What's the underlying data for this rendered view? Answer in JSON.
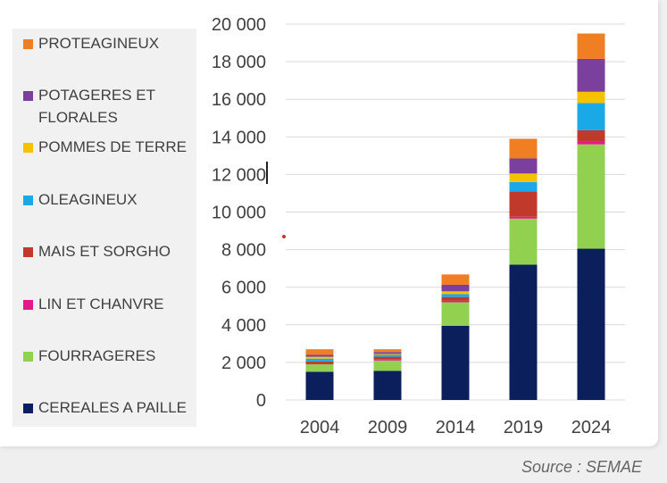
{
  "chart_data": {
    "type": "bar",
    "stacked": true,
    "categories": [
      "2004",
      "2009",
      "2014",
      "2019",
      "2024"
    ],
    "ylim": [
      0,
      20000
    ],
    "yticks": [
      0,
      2000,
      4000,
      6000,
      8000,
      10000,
      12000,
      14000,
      16000,
      18000,
      20000
    ],
    "ytick_labels": [
      "0",
      "2 000",
      "4 000",
      "6 000",
      "8 000",
      "10 000",
      "12 000",
      "14 000",
      "16 000",
      "18 000",
      "20 000"
    ],
    "series": [
      {
        "name": "CEREALES A PAILLE",
        "color": "#0a1f5c",
        "values": [
          1500,
          1550,
          3950,
          7200,
          8050
        ]
      },
      {
        "name": "FOURRAGERES",
        "color": "#92d050",
        "values": [
          400,
          550,
          1250,
          2450,
          5550
        ]
      },
      {
        "name": "LIN ET CHANVRE",
        "color": "#e6198c",
        "values": [
          50,
          50,
          80,
          100,
          150
        ]
      },
      {
        "name": "MAIS ET SORGHO",
        "color": "#c0392b",
        "values": [
          100,
          150,
          200,
          1350,
          600
        ]
      },
      {
        "name": "OLEAGINEUX",
        "color": "#19a9e6",
        "values": [
          150,
          100,
          150,
          500,
          1450
        ]
      },
      {
        "name": "POMMES DE TERRE",
        "color": "#f5c200",
        "values": [
          100,
          50,
          150,
          450,
          600
        ]
      },
      {
        "name": "POTAGERES ET FLORALES",
        "color": "#7b3f9e",
        "values": [
          100,
          100,
          350,
          800,
          1750
        ]
      },
      {
        "name": "PROTEAGINEUX",
        "color": "#f07f24",
        "values": [
          300,
          150,
          550,
          1050,
          1350
        ]
      }
    ]
  },
  "legend": [
    {
      "label": "PROTEAGINEUX",
      "color": "#f07f24"
    },
    {
      "label": "POTAGERES ET FLORALES",
      "color": "#7b3f9e"
    },
    {
      "label": "POMMES DE TERRE",
      "color": "#f5c200"
    },
    {
      "label": "OLEAGINEUX",
      "color": "#19a9e6"
    },
    {
      "label": "MAIS ET SORGHO",
      "color": "#c0392b"
    },
    {
      "label": "LIN ET CHANVRE",
      "color": "#e6198c"
    },
    {
      "label": "FOURRAGERES",
      "color": "#92d050"
    },
    {
      "label": "CEREALES A PAILLE",
      "color": "#0a1f5c"
    }
  ],
  "source": "Source : SEMAE"
}
